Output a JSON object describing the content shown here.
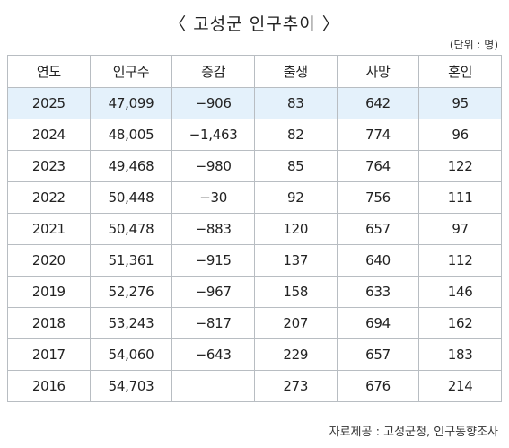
{
  "title": "〈 고성군 인구추이 〉",
  "unit_note": "(단위 : 명)",
  "source": "자료제공 : 고성군청, 인구동향조사",
  "colors": {
    "highlight_row": "#e4f1fb",
    "border": "#b8bdc2"
  },
  "chart_data": {
    "type": "table",
    "title": "〈 고성군 인구추이 〉",
    "columns": [
      "연도",
      "인구수",
      "증감",
      "출생",
      "사망",
      "혼인"
    ],
    "highlighted_row_index": 0,
    "rows": [
      [
        "2025",
        "47,099",
        "−906",
        "83",
        "642",
        "95"
      ],
      [
        "2024",
        "48,005",
        "−1,463",
        "82",
        "774",
        "96"
      ],
      [
        "2023",
        "49,468",
        "−980",
        "85",
        "764",
        "122"
      ],
      [
        "2022",
        "50,448",
        "−30",
        "92",
        "756",
        "111"
      ],
      [
        "2021",
        "50,478",
        "−883",
        "120",
        "657",
        "97"
      ],
      [
        "2020",
        "51,361",
        "−915",
        "137",
        "640",
        "112"
      ],
      [
        "2019",
        "52,276",
        "−967",
        "158",
        "633",
        "146"
      ],
      [
        "2018",
        "53,243",
        "−817",
        "207",
        "694",
        "162"
      ],
      [
        "2017",
        "54,060",
        "−643",
        "229",
        "657",
        "183"
      ],
      [
        "2016",
        "54,703",
        "",
        "273",
        "676",
        "214"
      ]
    ]
  }
}
